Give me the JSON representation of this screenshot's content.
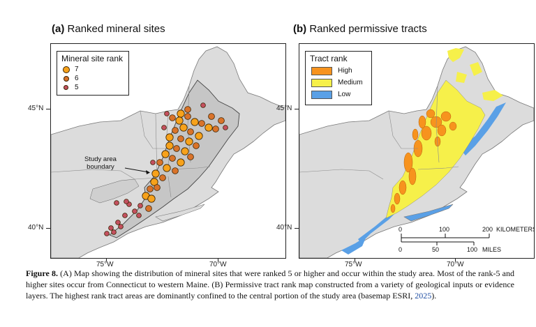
{
  "panel_a": {
    "title_prefix": "(a)",
    "title_text": "Ranked mineral sites",
    "legend_title": "Mineral site rank",
    "legend_items": [
      {
        "label": "7",
        "color": "#f7a21b"
      },
      {
        "label": "6",
        "color": "#d9732a"
      },
      {
        "label": "5",
        "color": "#c4505f"
      }
    ],
    "annotation": [
      "Study area",
      "boundary"
    ],
    "lat_labels": [
      "45°N",
      "40°N"
    ],
    "lon_labels": [
      "75°W",
      "70°W"
    ]
  },
  "panel_b": {
    "title_prefix": "(b)",
    "title_text": "Ranked permissive tracts",
    "legend_title": "Tract rank",
    "legend_items": [
      {
        "label": "High",
        "color": "#f7931e"
      },
      {
        "label": "Medium",
        "color": "#f6f04a"
      },
      {
        "label": "Low",
        "color": "#5aa0e6"
      }
    ],
    "lat_labels": [
      "45°N",
      "40°N"
    ],
    "lon_labels": [
      "75°W",
      "70°W"
    ],
    "scale": {
      "km_ticks": [
        "0",
        "100",
        "200"
      ],
      "km_unit": "KILOMETERS",
      "mi_ticks": [
        "0",
        "50",
        "100"
      ],
      "mi_unit": "MILES"
    }
  },
  "caption": {
    "figure_label": "Figure 8.",
    "text": " (A) Map showing the distribution of mineral sites that were ranked 5 or higher and occur within the study area. Most of the rank-5 and higher sites occur from Connecticut to western Maine. (B) Permissive tract rank map constructed from a variety of geological inputs or evidence layers. The highest rank tract areas are dominantly confined to the central portion of the study area (basemap ESRI, ",
    "ref_year": "2025",
    "end": ")."
  },
  "colors": {
    "land": "#dcdcdc",
    "study_area": "#c8c8c8",
    "high": "#f7931e",
    "medium": "#f6f04a",
    "low": "#5aa0e6"
  }
}
